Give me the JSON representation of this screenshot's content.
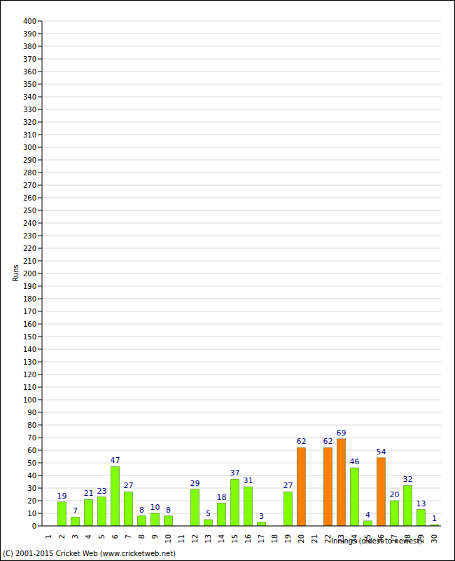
{
  "chart_data": {
    "type": "bar",
    "x_label": "Innings (oldest to newest)",
    "y_label": "Runs",
    "annotations": [
      "(C) 2001-2015 Cricket Web (www.cricketweb.net)"
    ],
    "categories": [
      "1",
      "2",
      "3",
      "4",
      "5",
      "6",
      "7",
      "8",
      "9",
      "10",
      "11",
      "12",
      "13",
      "14",
      "15",
      "16",
      "17",
      "18",
      "19",
      "20",
      "21",
      "22",
      "23",
      "24",
      "25",
      "26",
      "27",
      "28",
      "29",
      "30"
    ],
    "values": [
      0,
      19,
      7,
      21,
      23,
      47,
      27,
      8,
      10,
      8,
      0,
      29,
      5,
      18,
      37,
      31,
      3,
      0,
      27,
      62,
      0,
      62,
      69,
      46,
      4,
      54,
      20,
      32,
      13,
      1
    ],
    "colors": [
      "#80ff00",
      "#80ff00",
      "#80ff00",
      "#80ff00",
      "#80ff00",
      "#80ff00",
      "#80ff00",
      "#80ff00",
      "#80ff00",
      "#80ff00",
      "#80ff00",
      "#80ff00",
      "#80ff00",
      "#80ff00",
      "#80ff00",
      "#80ff00",
      "#80ff00",
      "#80ff00",
      "#80ff00",
      "#ff8000",
      "#80ff00",
      "#ff8000",
      "#ff8000",
      "#80ff00",
      "#80ff00",
      "#ff8000",
      "#80ff00",
      "#80ff00",
      "#80ff00",
      "#80ff00"
    ],
    "ylim": [
      0,
      400
    ],
    "yticks": [
      0,
      10,
      20,
      30,
      40,
      50,
      60,
      70,
      80,
      90,
      100,
      110,
      120,
      130,
      140,
      150,
      160,
      170,
      180,
      190,
      200,
      210,
      220,
      230,
      240,
      250,
      260,
      270,
      280,
      290,
      300,
      310,
      320,
      330,
      340,
      350,
      360,
      370,
      380,
      390,
      400
    ],
    "grid": true,
    "data_labels": true
  }
}
